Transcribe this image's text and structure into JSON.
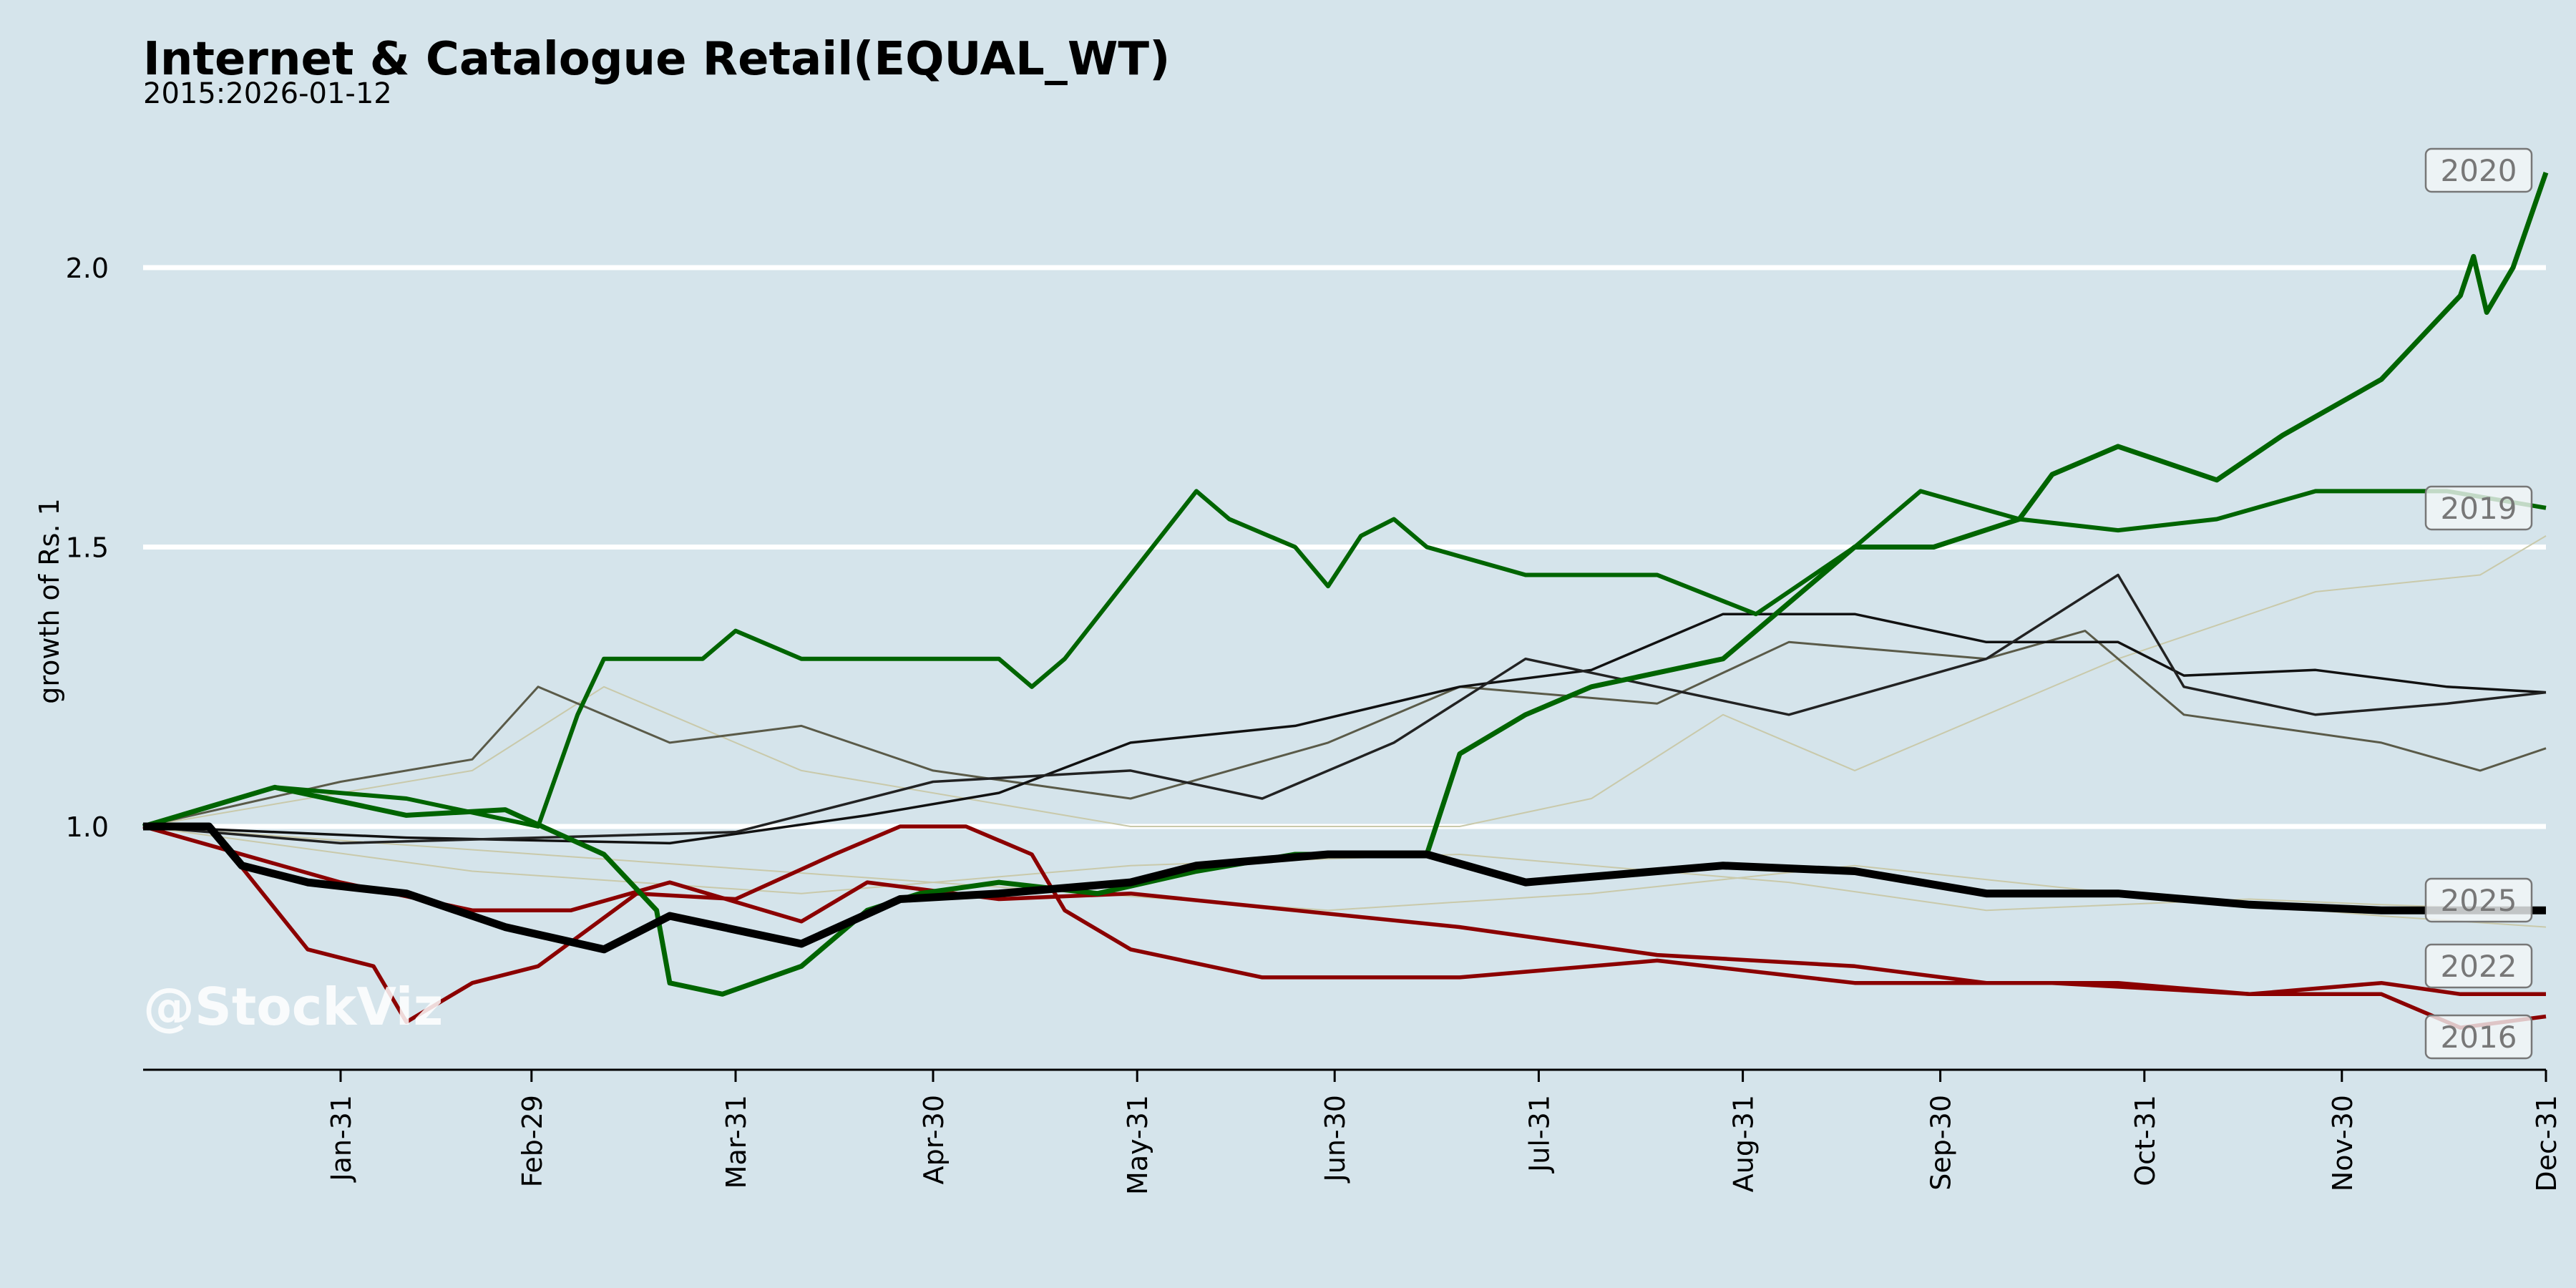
{
  "chart_data": {
    "type": "line",
    "title": "Internet & Catalogue Retail(EQUAL_WT)",
    "subtitle": "2015:2026-01-12",
    "xlabel": "",
    "ylabel": "growth of Rs. 1",
    "watermark": "@StockViz",
    "xlim": [
      0,
      365
    ],
    "ylim": [
      0.56,
      2.2
    ],
    "grid": true,
    "x_ticks": [
      {
        "day": 30,
        "label": "Jan-31"
      },
      {
        "day": 59,
        "label": "Feb-29"
      },
      {
        "day": 90,
        "label": "Mar-31"
      },
      {
        "day": 120,
        "label": "Apr-30"
      },
      {
        "day": 151,
        "label": "May-31"
      },
      {
        "day": 181,
        "label": "Jun-30"
      },
      {
        "day": 212,
        "label": "Jul-31"
      },
      {
        "day": 243,
        "label": "Aug-31"
      },
      {
        "day": 273,
        "label": "Sep-30"
      },
      {
        "day": 304,
        "label": "Oct-31"
      },
      {
        "day": 334,
        "label": "Nov-30"
      },
      {
        "day": 365,
        "label": "Dec-31"
      }
    ],
    "y_ticks": [
      {
        "value": 1.0,
        "label": "1.0"
      },
      {
        "value": 1.5,
        "label": "1.5"
      },
      {
        "value": 2.0,
        "label": "2.0"
      }
    ],
    "series": [
      {
        "name": "",
        "style": "beige",
        "color": "#c9c9aa",
        "points": [
          [
            0,
            1.0
          ],
          [
            50,
            1.1
          ],
          [
            70,
            1.25
          ],
          [
            100,
            1.1
          ],
          [
            150,
            1.0
          ],
          [
            200,
            1.0
          ],
          [
            220,
            1.05
          ],
          [
            240,
            1.2
          ],
          [
            260,
            1.1
          ],
          [
            300,
            1.3
          ],
          [
            330,
            1.42
          ],
          [
            355,
            1.45
          ],
          [
            365,
            1.52
          ]
        ]
      },
      {
        "name": "",
        "style": "beige",
        "color": "#c9c9aa",
        "points": [
          [
            0,
            1.0
          ],
          [
            50,
            0.92
          ],
          [
            100,
            0.88
          ],
          [
            150,
            0.93
          ],
          [
            200,
            0.95
          ],
          [
            250,
            0.9
          ],
          [
            280,
            0.85
          ],
          [
            320,
            0.87
          ],
          [
            340,
            0.86
          ],
          [
            365,
            0.85
          ]
        ]
      },
      {
        "name": "",
        "style": "beige",
        "color": "#c9c9aa",
        "points": [
          [
            0,
            1.0
          ],
          [
            60,
            0.95
          ],
          [
            120,
            0.9
          ],
          [
            180,
            0.85
          ],
          [
            220,
            0.88
          ],
          [
            260,
            0.93
          ],
          [
            300,
            0.88
          ],
          [
            340,
            0.84
          ],
          [
            365,
            0.82
          ]
        ]
      },
      {
        "name": "",
        "style": "grey",
        "color": "#5a5a48",
        "points": [
          [
            0,
            1.0
          ],
          [
            30,
            1.08
          ],
          [
            50,
            1.12
          ],
          [
            60,
            1.25
          ],
          [
            80,
            1.15
          ],
          [
            100,
            1.18
          ],
          [
            120,
            1.1
          ],
          [
            150,
            1.05
          ],
          [
            180,
            1.15
          ],
          [
            200,
            1.25
          ],
          [
            230,
            1.22
          ],
          [
            250,
            1.33
          ],
          [
            280,
            1.3
          ],
          [
            295,
            1.35
          ],
          [
            310,
            1.2
          ],
          [
            340,
            1.15
          ],
          [
            355,
            1.1
          ],
          [
            365,
            1.14
          ]
        ]
      },
      {
        "name": "",
        "style": "thin",
        "color": "#111111",
        "points": [
          [
            0,
            1.0
          ],
          [
            40,
            0.98
          ],
          [
            80,
            0.97
          ],
          [
            110,
            1.02
          ],
          [
            130,
            1.06
          ],
          [
            150,
            1.15
          ],
          [
            175,
            1.18
          ],
          [
            200,
            1.25
          ],
          [
            220,
            1.28
          ],
          [
            240,
            1.38
          ],
          [
            260,
            1.38
          ],
          [
            280,
            1.33
          ],
          [
            300,
            1.33
          ],
          [
            310,
            1.27
          ],
          [
            330,
            1.28
          ],
          [
            350,
            1.25
          ],
          [
            365,
            1.24
          ]
        ]
      },
      {
        "name": "",
        "style": "thin",
        "color": "#222222",
        "points": [
          [
            0,
            1.0
          ],
          [
            30,
            0.97
          ],
          [
            60,
            0.98
          ],
          [
            90,
            0.99
          ],
          [
            120,
            1.08
          ],
          [
            150,
            1.1
          ],
          [
            170,
            1.05
          ],
          [
            190,
            1.15
          ],
          [
            210,
            1.3
          ],
          [
            230,
            1.25
          ],
          [
            250,
            1.2
          ],
          [
            280,
            1.3
          ],
          [
            300,
            1.45
          ],
          [
            310,
            1.25
          ],
          [
            330,
            1.2
          ],
          [
            350,
            1.22
          ],
          [
            365,
            1.24
          ]
        ]
      },
      {
        "name": "2016",
        "style": "red",
        "color": "#8b0000",
        "points": [
          [
            0,
            1.0
          ],
          [
            10,
            1.0
          ],
          [
            25,
            0.78
          ],
          [
            35,
            0.75
          ],
          [
            40,
            0.65
          ],
          [
            50,
            0.72
          ],
          [
            60,
            0.75
          ],
          [
            75,
            0.88
          ],
          [
            90,
            0.87
          ],
          [
            105,
            0.95
          ],
          [
            115,
            1.0
          ],
          [
            125,
            1.0
          ],
          [
            135,
            0.95
          ],
          [
            140,
            0.85
          ],
          [
            150,
            0.78
          ],
          [
            170,
            0.73
          ],
          [
            200,
            0.73
          ],
          [
            230,
            0.76
          ],
          [
            260,
            0.72
          ],
          [
            290,
            0.72
          ],
          [
            320,
            0.7
          ],
          [
            340,
            0.7
          ],
          [
            352,
            0.64
          ],
          [
            365,
            0.66
          ]
        ]
      },
      {
        "name": "2022",
        "style": "red",
        "color": "#8b0000",
        "points": [
          [
            0,
            1.0
          ],
          [
            15,
            0.95
          ],
          [
            30,
            0.9
          ],
          [
            50,
            0.85
          ],
          [
            65,
            0.85
          ],
          [
            80,
            0.9
          ],
          [
            100,
            0.83
          ],
          [
            110,
            0.9
          ],
          [
            130,
            0.87
          ],
          [
            150,
            0.88
          ],
          [
            175,
            0.85
          ],
          [
            200,
            0.82
          ],
          [
            230,
            0.77
          ],
          [
            260,
            0.75
          ],
          [
            280,
            0.72
          ],
          [
            300,
            0.72
          ],
          [
            320,
            0.7
          ],
          [
            340,
            0.72
          ],
          [
            352,
            0.7
          ],
          [
            365,
            0.7
          ]
        ]
      },
      {
        "name": "2019",
        "style": "green",
        "color": "#006400",
        "points": [
          [
            0,
            1.0
          ],
          [
            20,
            1.07
          ],
          [
            40,
            1.05
          ],
          [
            60,
            1.0
          ],
          [
            66,
            1.2
          ],
          [
            70,
            1.3
          ],
          [
            85,
            1.3
          ],
          [
            90,
            1.35
          ],
          [
            100,
            1.3
          ],
          [
            130,
            1.3
          ],
          [
            135,
            1.25
          ],
          [
            140,
            1.3
          ],
          [
            150,
            1.45
          ],
          [
            160,
            1.6
          ],
          [
            165,
            1.55
          ],
          [
            175,
            1.5
          ],
          [
            180,
            1.43
          ],
          [
            185,
            1.52
          ],
          [
            190,
            1.55
          ],
          [
            195,
            1.5
          ],
          [
            210,
            1.45
          ],
          [
            230,
            1.45
          ],
          [
            245,
            1.38
          ],
          [
            260,
            1.5
          ],
          [
            270,
            1.6
          ],
          [
            285,
            1.55
          ],
          [
            300,
            1.53
          ],
          [
            315,
            1.55
          ],
          [
            330,
            1.6
          ],
          [
            350,
            1.6
          ],
          [
            365,
            1.57
          ]
        ]
      },
      {
        "name": "2020",
        "style": "green-thick",
        "color": "#006400",
        "points": [
          [
            0,
            1.0
          ],
          [
            20,
            1.07
          ],
          [
            40,
            1.02
          ],
          [
            55,
            1.03
          ],
          [
            70,
            0.95
          ],
          [
            78,
            0.85
          ],
          [
            80,
            0.72
          ],
          [
            88,
            0.7
          ],
          [
            100,
            0.75
          ],
          [
            110,
            0.85
          ],
          [
            118,
            0.88
          ],
          [
            130,
            0.9
          ],
          [
            145,
            0.88
          ],
          [
            160,
            0.92
          ],
          [
            175,
            0.95
          ],
          [
            195,
            0.95
          ],
          [
            200,
            1.13
          ],
          [
            210,
            1.2
          ],
          [
            220,
            1.25
          ],
          [
            240,
            1.3
          ],
          [
            250,
            1.4
          ],
          [
            260,
            1.5
          ],
          [
            272,
            1.5
          ],
          [
            285,
            1.55
          ],
          [
            290,
            1.63
          ],
          [
            300,
            1.68
          ],
          [
            315,
            1.62
          ],
          [
            325,
            1.7
          ],
          [
            340,
            1.8
          ],
          [
            352,
            1.95
          ],
          [
            354,
            2.02
          ],
          [
            356,
            1.92
          ],
          [
            360,
            2.0
          ],
          [
            365,
            2.17
          ]
        ]
      },
      {
        "name": "2025",
        "style": "black-thick",
        "color": "#000000",
        "points": [
          [
            0,
            1.0
          ],
          [
            10,
            1.0
          ],
          [
            15,
            0.93
          ],
          [
            25,
            0.9
          ],
          [
            40,
            0.88
          ],
          [
            55,
            0.82
          ],
          [
            70,
            0.78
          ],
          [
            80,
            0.84
          ],
          [
            100,
            0.79
          ],
          [
            115,
            0.87
          ],
          [
            130,
            0.88
          ],
          [
            150,
            0.9
          ],
          [
            160,
            0.93
          ],
          [
            180,
            0.95
          ],
          [
            195,
            0.95
          ],
          [
            210,
            0.9
          ],
          [
            240,
            0.93
          ],
          [
            260,
            0.92
          ],
          [
            280,
            0.88
          ],
          [
            300,
            0.88
          ],
          [
            320,
            0.86
          ],
          [
            340,
            0.85
          ],
          [
            365,
            0.85
          ]
        ]
      }
    ],
    "end_labels": [
      "2020",
      "2019",
      "2025",
      "2022",
      "2016"
    ]
  }
}
